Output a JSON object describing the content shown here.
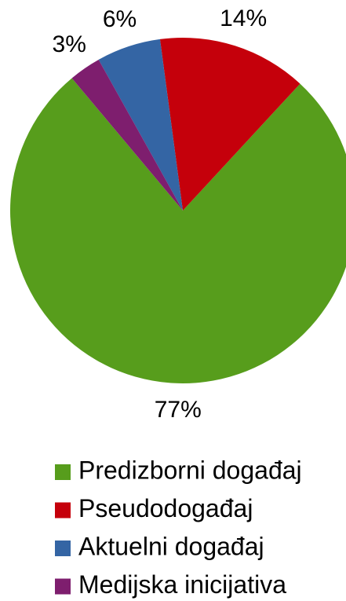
{
  "chart_data": {
    "type": "pie",
    "categories": [
      "Predizborni događaj",
      "Pseudodogađaj",
      "Aktuelni događaj",
      "Medijska inicijativa"
    ],
    "values": [
      77,
      14,
      6,
      3
    ],
    "value_labels": [
      "77%",
      "14%",
      "6%",
      "3%"
    ],
    "colors": [
      "#579d1c",
      "#c5000b",
      "#3465a4",
      "#7e1e6e"
    ],
    "legend": "bottom"
  }
}
